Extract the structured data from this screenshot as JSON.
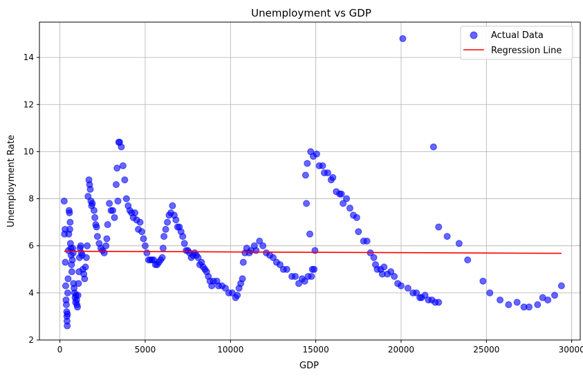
{
  "chart_data": {
    "type": "scatter",
    "title": "Unemployment vs GDP",
    "xlabel": "GDP",
    "ylabel": "Unemployment Rate",
    "xlim": [
      -1200,
      30500
    ],
    "ylim": [
      2,
      15.5
    ],
    "xticks": [
      0,
      5000,
      10000,
      15000,
      20000,
      25000,
      30000
    ],
    "yticks": [
      2,
      4,
      6,
      8,
      10,
      12,
      14
    ],
    "grid": true,
    "legend_position": "top-right",
    "colors": {
      "points": "#0000ff",
      "regression": "#ff0000",
      "grid": "#b0b0b0"
    },
    "series": [
      {
        "name": "Actual Data",
        "kind": "scatter",
        "points": [
          [
            250,
            7.9
          ],
          [
            270,
            6.5
          ],
          [
            300,
            6.7
          ],
          [
            320,
            5.3
          ],
          [
            340,
            4.3
          ],
          [
            360,
            3.7
          ],
          [
            380,
            3.5
          ],
          [
            400,
            3.2
          ],
          [
            410,
            3.0
          ],
          [
            420,
            2.8
          ],
          [
            430,
            2.6
          ],
          [
            440,
            3.1
          ],
          [
            460,
            4.0
          ],
          [
            480,
            4.6
          ],
          [
            500,
            5.8
          ],
          [
            520,
            6.5
          ],
          [
            540,
            7.5
          ],
          [
            560,
            7.4
          ],
          [
            580,
            6.7
          ],
          [
            600,
            7.0
          ],
          [
            620,
            6.1
          ],
          [
            640,
            5.9
          ],
          [
            660,
            5.6
          ],
          [
            680,
            5.2
          ],
          [
            700,
            4.9
          ],
          [
            730,
            5.4
          ],
          [
            750,
            5.9
          ],
          [
            780,
            5.7
          ],
          [
            800,
            4.4
          ],
          [
            830,
            4.2
          ],
          [
            860,
            4.0
          ],
          [
            890,
            3.8
          ],
          [
            920,
            3.6
          ],
          [
            950,
            3.9
          ],
          [
            980,
            3.7
          ],
          [
            1000,
            3.5
          ],
          [
            1030,
            3.4
          ],
          [
            1060,
            3.9
          ],
          [
            1090,
            4.4
          ],
          [
            1120,
            4.9
          ],
          [
            1150,
            5.5
          ],
          [
            1180,
            5.9
          ],
          [
            1220,
            6.0
          ],
          [
            1260,
            5.7
          ],
          [
            1300,
            5.6
          ],
          [
            1350,
            5.0
          ],
          [
            1400,
            4.8
          ],
          [
            1450,
            4.6
          ],
          [
            1500,
            5.1
          ],
          [
            1550,
            5.5
          ],
          [
            1600,
            6.0
          ],
          [
            1650,
            8.1
          ],
          [
            1700,
            8.8
          ],
          [
            1740,
            8.6
          ],
          [
            1780,
            8.4
          ],
          [
            1820,
            7.9
          ],
          [
            1860,
            7.7
          ],
          [
            1900,
            7.8
          ],
          [
            2000,
            7.5
          ],
          [
            2050,
            7.2
          ],
          [
            2100,
            6.9
          ],
          [
            2150,
            6.8
          ],
          [
            2200,
            6.4
          ],
          [
            2300,
            6.1
          ],
          [
            2400,
            5.9
          ],
          [
            2500,
            5.8
          ],
          [
            2600,
            5.7
          ],
          [
            2700,
            6.0
          ],
          [
            2750,
            6.3
          ],
          [
            2800,
            6.9
          ],
          [
            2900,
            7.8
          ],
          [
            3000,
            7.5
          ],
          [
            3100,
            7.5
          ],
          [
            3200,
            7.2
          ],
          [
            3300,
            8.6
          ],
          [
            3350,
            9.3
          ],
          [
            3400,
            7.9
          ],
          [
            3450,
            10.4
          ],
          [
            3500,
            10.4
          ],
          [
            3600,
            10.2
          ],
          [
            3700,
            9.4
          ],
          [
            3800,
            8.8
          ],
          [
            3900,
            8.0
          ],
          [
            4000,
            7.7
          ],
          [
            4100,
            7.5
          ],
          [
            4200,
            7.4
          ],
          [
            4300,
            7.2
          ],
          [
            4400,
            7.4
          ],
          [
            4500,
            7.1
          ],
          [
            4600,
            6.7
          ],
          [
            4700,
            7.0
          ],
          [
            4800,
            6.6
          ],
          [
            4900,
            6.3
          ],
          [
            5000,
            6.0
          ],
          [
            5100,
            5.7
          ],
          [
            5200,
            5.4
          ],
          [
            5300,
            5.4
          ],
          [
            5400,
            5.4
          ],
          [
            5500,
            5.4
          ],
          [
            5600,
            5.2
          ],
          [
            5700,
            5.2
          ],
          [
            5800,
            5.3
          ],
          [
            5900,
            5.4
          ],
          [
            6000,
            5.5
          ],
          [
            6050,
            5.9
          ],
          [
            6100,
            6.4
          ],
          [
            6200,
            6.7
          ],
          [
            6300,
            7.0
          ],
          [
            6400,
            7.3
          ],
          [
            6500,
            7.4
          ],
          [
            6600,
            7.7
          ],
          [
            6700,
            7.3
          ],
          [
            6800,
            7.1
          ],
          [
            6900,
            6.8
          ],
          [
            7000,
            6.8
          ],
          [
            7100,
            6.6
          ],
          [
            7200,
            6.4
          ],
          [
            7300,
            6.1
          ],
          [
            7400,
            5.8
          ],
          [
            7500,
            5.8
          ],
          [
            7600,
            5.7
          ],
          [
            7700,
            5.5
          ],
          [
            7800,
            5.6
          ],
          [
            7900,
            5.7
          ],
          [
            8000,
            5.6
          ],
          [
            8100,
            5.5
          ],
          [
            8200,
            5.2
          ],
          [
            8300,
            5.3
          ],
          [
            8400,
            5.1
          ],
          [
            8500,
            5.0
          ],
          [
            8600,
            4.9
          ],
          [
            8700,
            4.7
          ],
          [
            8800,
            4.5
          ],
          [
            8900,
            4.3
          ],
          [
            9000,
            4.5
          ],
          [
            9200,
            4.5
          ],
          [
            9300,
            4.3
          ],
          [
            9500,
            4.3
          ],
          [
            9700,
            4.2
          ],
          [
            9900,
            4.0
          ],
          [
            10100,
            4.0
          ],
          [
            10300,
            3.8
          ],
          [
            10400,
            3.9
          ],
          [
            10500,
            4.2
          ],
          [
            10600,
            4.4
          ],
          [
            10700,
            4.6
          ],
          [
            10750,
            5.3
          ],
          [
            10850,
            5.7
          ],
          [
            10950,
            5.9
          ],
          [
            11100,
            5.7
          ],
          [
            11200,
            5.8
          ],
          [
            11400,
            6.0
          ],
          [
            11500,
            5.8
          ],
          [
            11700,
            6.2
          ],
          [
            11900,
            6.0
          ],
          [
            12100,
            5.7
          ],
          [
            12300,
            5.6
          ],
          [
            12500,
            5.5
          ],
          [
            12700,
            5.3
          ],
          [
            12900,
            5.2
          ],
          [
            13100,
            5.0
          ],
          [
            13300,
            5.0
          ],
          [
            13600,
            4.7
          ],
          [
            13800,
            4.7
          ],
          [
            14000,
            4.4
          ],
          [
            14200,
            4.6
          ],
          [
            14350,
            4.5
          ],
          [
            14400,
            9.0
          ],
          [
            14450,
            7.8
          ],
          [
            14500,
            9.5
          ],
          [
            14550,
            4.7
          ],
          [
            14650,
            6.5
          ],
          [
            14700,
            10.0
          ],
          [
            14750,
            4.7
          ],
          [
            14800,
            5.0
          ],
          [
            14850,
            9.8
          ],
          [
            14900,
            5.0
          ],
          [
            14950,
            5.8
          ],
          [
            15050,
            9.9
          ],
          [
            15200,
            9.4
          ],
          [
            15400,
            9.4
          ],
          [
            15500,
            9.1
          ],
          [
            15700,
            9.1
          ],
          [
            15900,
            8.8
          ],
          [
            16000,
            8.9
          ],
          [
            16200,
            8.3
          ],
          [
            16400,
            8.2
          ],
          [
            16500,
            8.2
          ],
          [
            16600,
            7.8
          ],
          [
            16800,
            8.0
          ],
          [
            17000,
            7.6
          ],
          [
            17200,
            7.3
          ],
          [
            17400,
            7.2
          ],
          [
            17500,
            6.6
          ],
          [
            17800,
            6.2
          ],
          [
            18000,
            6.2
          ],
          [
            18200,
            5.7
          ],
          [
            18400,
            5.5
          ],
          [
            18500,
            5.2
          ],
          [
            18600,
            5.0
          ],
          [
            18800,
            5.0
          ],
          [
            18900,
            4.8
          ],
          [
            19000,
            5.1
          ],
          [
            19200,
            4.8
          ],
          [
            19400,
            4.9
          ],
          [
            19600,
            4.7
          ],
          [
            19800,
            4.4
          ],
          [
            20000,
            4.3
          ],
          [
            20100,
            14.8
          ],
          [
            20400,
            4.2
          ],
          [
            20700,
            4.0
          ],
          [
            20900,
            4.0
          ],
          [
            21100,
            3.8
          ],
          [
            21200,
            3.8
          ],
          [
            21400,
            3.9
          ],
          [
            21600,
            3.7
          ],
          [
            21800,
            3.7
          ],
          [
            22000,
            3.6
          ],
          [
            22200,
            3.6
          ],
          [
            21900,
            10.2
          ],
          [
            22200,
            6.8
          ],
          [
            22700,
            6.4
          ],
          [
            23400,
            6.1
          ],
          [
            23900,
            5.4
          ],
          [
            24800,
            4.5
          ],
          [
            25200,
            4.0
          ],
          [
            25800,
            3.7
          ],
          [
            26300,
            3.5
          ],
          [
            26800,
            3.6
          ],
          [
            27200,
            3.4
          ],
          [
            27500,
            3.4
          ],
          [
            28000,
            3.5
          ],
          [
            28300,
            3.8
          ],
          [
            28600,
            3.7
          ],
          [
            29000,
            3.9
          ],
          [
            29400,
            4.3
          ]
        ]
      },
      {
        "name": "Regression Line",
        "kind": "line",
        "points": [
          [
            250,
            5.77
          ],
          [
            29400,
            5.68
          ]
        ]
      }
    ]
  }
}
